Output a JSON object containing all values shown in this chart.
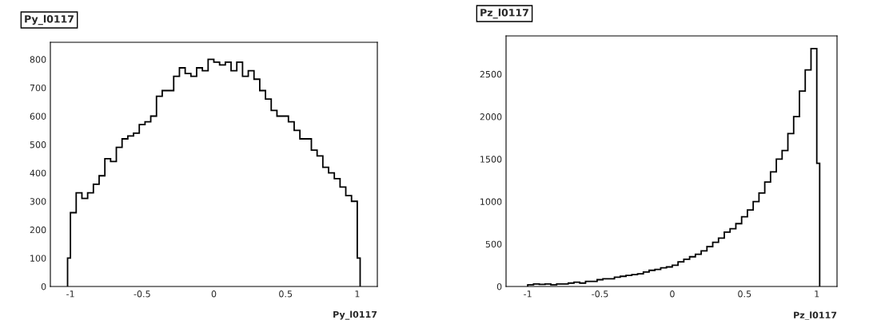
{
  "chart_data": [
    {
      "type": "histogram",
      "title": "Py_l0117",
      "xlabel": "Py_l0117",
      "color": "#000000",
      "bins": [
        -1.02,
        -1.0,
        -0.96,
        -0.92,
        -0.88,
        -0.84,
        -0.8,
        -0.76,
        -0.72,
        -0.68,
        -0.64,
        -0.6,
        -0.56,
        -0.52,
        -0.48,
        -0.44,
        -0.4,
        -0.36,
        -0.32,
        -0.28,
        -0.24,
        -0.2,
        -0.16,
        -0.12,
        -0.08,
        -0.04,
        0.0,
        0.04,
        0.08,
        0.12,
        0.16,
        0.2,
        0.24,
        0.28,
        0.32,
        0.36,
        0.4,
        0.44,
        0.48,
        0.52,
        0.56,
        0.6,
        0.64,
        0.68,
        0.72,
        0.76,
        0.8,
        0.84,
        0.88,
        0.92,
        0.96,
        1.0,
        1.02
      ],
      "values": [
        100,
        260,
        330,
        310,
        330,
        360,
        390,
        450,
        440,
        490,
        520,
        530,
        540,
        570,
        580,
        600,
        670,
        690,
        690,
        740,
        770,
        750,
        740,
        770,
        760,
        800,
        790,
        780,
        790,
        760,
        790,
        740,
        760,
        730,
        690,
        660,
        620,
        600,
        600,
        580,
        550,
        520,
        520,
        480,
        460,
        420,
        400,
        380,
        350,
        320,
        300,
        100
      ],
      "xlim": [
        -1.14,
        1.14
      ],
      "ylim": [
        0,
        860
      ],
      "xticks": [
        -1,
        -0.5,
        0,
        0.5,
        1
      ],
      "yticks": [
        0,
        100,
        200,
        300,
        400,
        500,
        600,
        700,
        800
      ],
      "grid": false
    },
    {
      "type": "histogram",
      "title": "Pz_l0117",
      "xlabel": "Pz_l0117",
      "color": "#000000",
      "bins": [
        -1.0,
        -0.96,
        -0.92,
        -0.88,
        -0.84,
        -0.8,
        -0.76,
        -0.72,
        -0.68,
        -0.64,
        -0.6,
        -0.56,
        -0.52,
        -0.48,
        -0.44,
        -0.4,
        -0.36,
        -0.32,
        -0.28,
        -0.24,
        -0.2,
        -0.16,
        -0.12,
        -0.08,
        -0.04,
        0.0,
        0.04,
        0.08,
        0.12,
        0.16,
        0.2,
        0.24,
        0.28,
        0.32,
        0.36,
        0.4,
        0.44,
        0.48,
        0.52,
        0.56,
        0.6,
        0.64,
        0.68,
        0.72,
        0.76,
        0.8,
        0.84,
        0.88,
        0.92,
        0.96,
        1.0,
        1.02
      ],
      "values": [
        20,
        30,
        25,
        30,
        20,
        30,
        30,
        40,
        50,
        40,
        60,
        60,
        80,
        90,
        90,
        110,
        120,
        130,
        140,
        150,
        170,
        190,
        200,
        220,
        230,
        250,
        290,
        320,
        350,
        380,
        420,
        470,
        520,
        570,
        640,
        680,
        740,
        820,
        900,
        1000,
        1100,
        1230,
        1350,
        1500,
        1600,
        1800,
        2000,
        2300,
        2550,
        2800,
        1450
      ],
      "xlim": [
        -1.15,
        1.14
      ],
      "ylim": [
        0,
        2950
      ],
      "xticks": [
        -1,
        -0.5,
        0,
        0.5,
        1
      ],
      "yticks": [
        0,
        500,
        1000,
        1500,
        2000,
        2500
      ],
      "grid": false
    }
  ]
}
